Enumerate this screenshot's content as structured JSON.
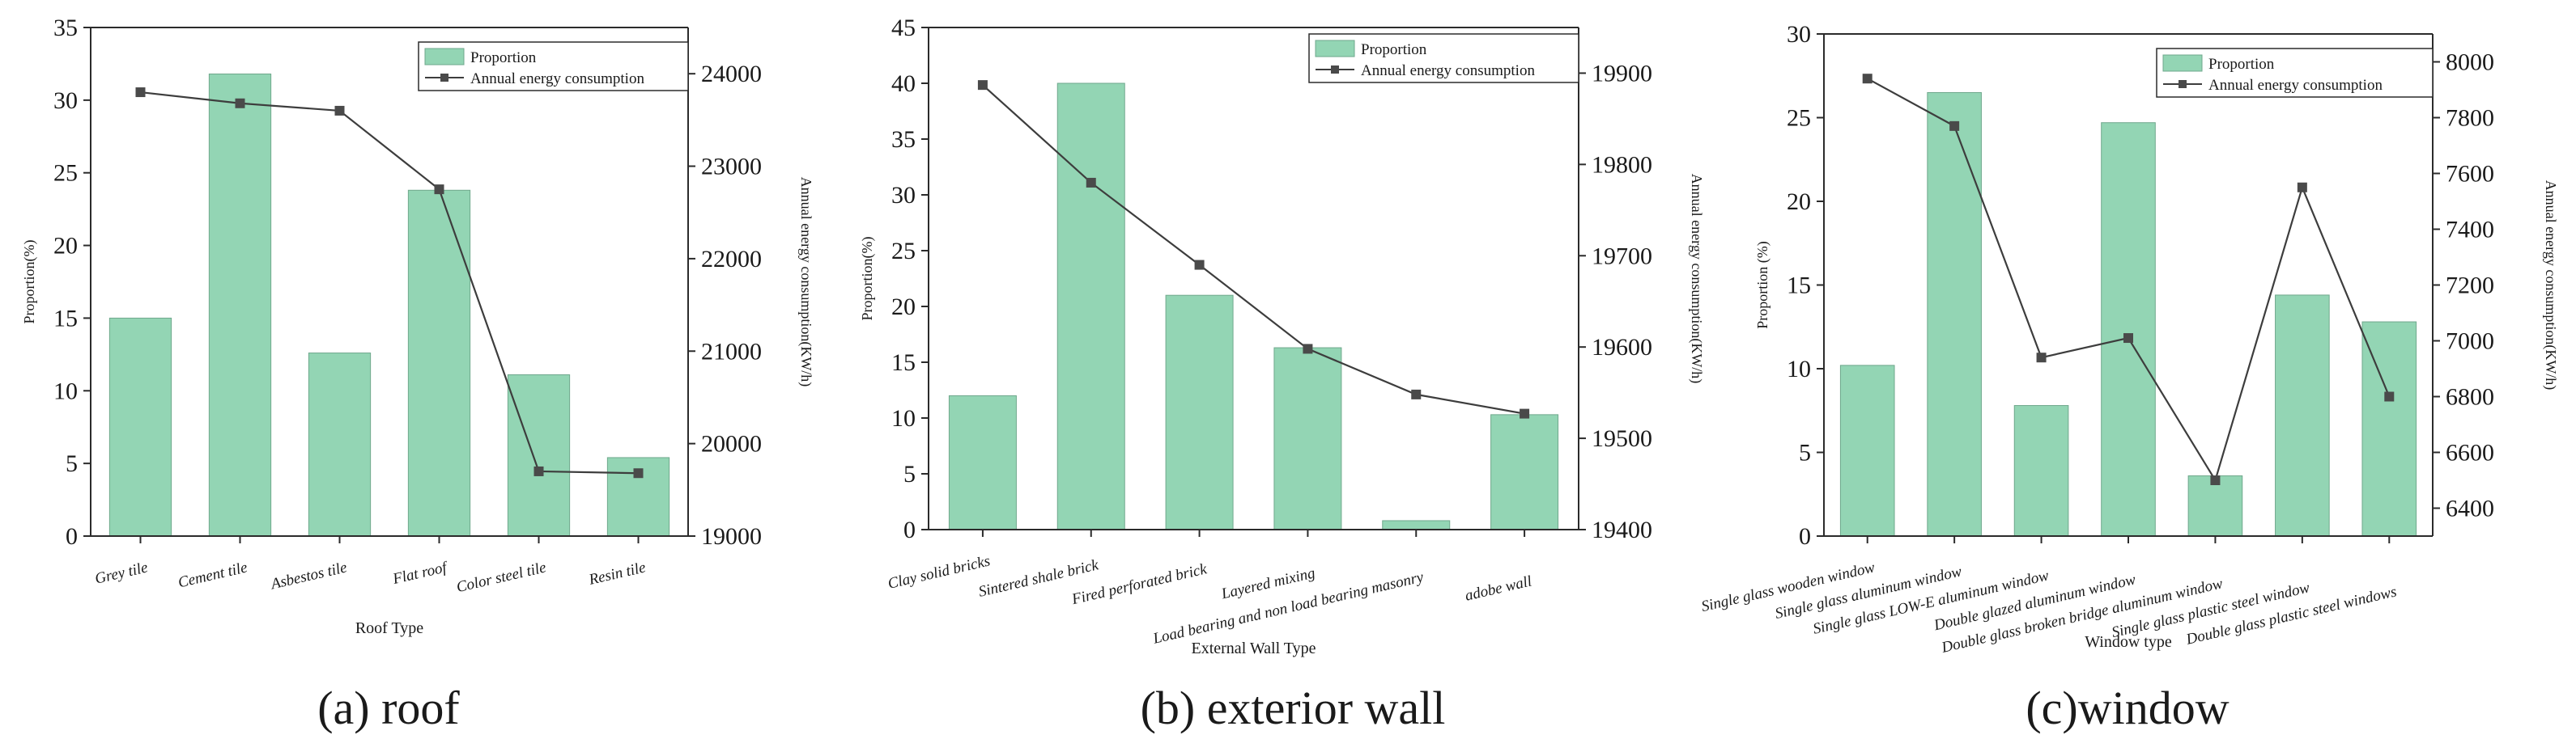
{
  "chart_data": [
    {
      "type": "bar",
      "caption": "(a) roof",
      "xlabel": "Roof Type",
      "ylabel": "Proportion(%)",
      "y2label": "Annual energy consumption(KW/h)",
      "ylim": [
        0,
        35
      ],
      "yticks": [
        0,
        5,
        10,
        15,
        20,
        25,
        30,
        35
      ],
      "y2lim": [
        19000,
        24500
      ],
      "y2ticks": [
        19000,
        20000,
        21000,
        22000,
        23000,
        24000
      ],
      "categories": [
        "Grey tile",
        "Cement tile",
        "Asbestos tile",
        "Flat roof",
        "Color steel tile",
        "Resin tile"
      ],
      "series": [
        {
          "name": "Proportion",
          "type": "bar",
          "axis": "left",
          "values": [
            15.0,
            31.8,
            12.6,
            23.8,
            11.1,
            5.4
          ]
        },
        {
          "name": "Annual energy consumption",
          "type": "line",
          "axis": "right",
          "values": [
            23800,
            23680,
            23600,
            22750,
            19700,
            19680
          ]
        }
      ],
      "legend_position": "top-right",
      "grid": false
    },
    {
      "type": "bar",
      "caption": "(b) exterior wall",
      "xlabel": "External Wall Type",
      "ylabel": "Proportion(%)",
      "y2label": "Annual energy consumption(KW/h)",
      "ylim": [
        0,
        45
      ],
      "yticks": [
        0,
        5,
        10,
        15,
        20,
        25,
        30,
        35,
        40,
        45
      ],
      "y2lim": [
        19400,
        19950
      ],
      "y2ticks": [
        19400,
        19500,
        19600,
        19700,
        19800,
        19900
      ],
      "categories": [
        "Clay solid bricks",
        "Sintered shale brick",
        "Fired perforated brick",
        "Layered mixing",
        "Load bearing and non load bearing masonry",
        "adobe wall"
      ],
      "series": [
        {
          "name": "Proportion",
          "type": "bar",
          "axis": "left",
          "values": [
            12.0,
            40.0,
            21.0,
            16.3,
            0.8,
            10.3
          ]
        },
        {
          "name": "Annual energy consumption",
          "type": "line",
          "axis": "right",
          "values": [
            19887,
            19780,
            19690,
            19598,
            19548,
            19527
          ]
        }
      ],
      "legend_position": "top-right",
      "grid": false
    },
    {
      "type": "bar",
      "caption": "(c)window",
      "xlabel": "Window type",
      "ylabel": "Proportion (%)",
      "y2label": "Annual energy consumption(KW/h)",
      "ylim": [
        0,
        30
      ],
      "yticks": [
        0,
        5,
        10,
        15,
        20,
        25,
        30
      ],
      "y2lim": [
        6300,
        8100
      ],
      "y2ticks": [
        6400,
        6600,
        6800,
        7000,
        7200,
        7400,
        7600,
        7800,
        8000
      ],
      "categories": [
        "Single glass wooden window",
        "Single glass aluminum window",
        "Single glass LOW-E aluminum window",
        "Double glazed aluminum window",
        "Double glass broken bridge aluminum window",
        "Single glass plastic steel window",
        "Double glass plastic steel windows"
      ],
      "series": [
        {
          "name": "Proportion",
          "type": "bar",
          "axis": "left",
          "values": [
            10.2,
            26.5,
            7.8,
            24.7,
            3.6,
            14.4,
            12.8
          ]
        },
        {
          "name": "Annual energy consumption",
          "type": "line",
          "axis": "right",
          "values": [
            7940,
            7770,
            6940,
            7010,
            6500,
            7550,
            6800
          ]
        }
      ],
      "legend_position": "top-right",
      "grid": false
    }
  ],
  "colors": {
    "bar_fill": "#93d5b4",
    "bar_stroke": "#6fa88c",
    "line": "#3d3d3d",
    "marker": "#4a4a4a",
    "axis": "#2b2b2b",
    "text": "#1a1a1a"
  }
}
